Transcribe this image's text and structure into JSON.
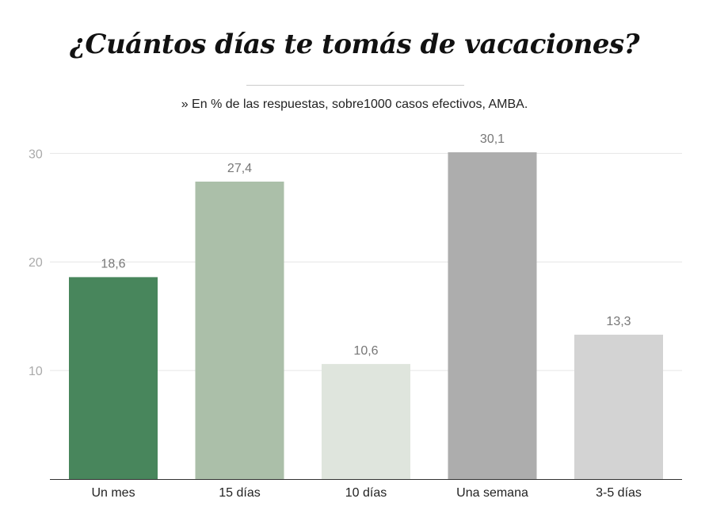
{
  "chart_data": {
    "type": "bar",
    "title": "¿Cuántos días te tomás de vacaciones?",
    "subtitle": "» En % de las respuestas, sobre1000 casos efectivos, AMBA.",
    "categories": [
      "Un mes",
      "15 días",
      "10 días",
      "Una semana",
      "3-5 días"
    ],
    "values": [
      18.6,
      27.4,
      10.6,
      30.1,
      13.3
    ],
    "value_labels": [
      "18,6",
      "27,4",
      "10,6",
      "30,1",
      "13,3"
    ],
    "colors": [
      "#48865c",
      "#abbfa9",
      "#dfe5dd",
      "#adadad",
      "#d3d3d3"
    ],
    "yticks": [
      10,
      20,
      30
    ],
    "ylim": [
      0,
      30.1
    ],
    "xlabel": "",
    "ylabel": "",
    "grid": true
  }
}
